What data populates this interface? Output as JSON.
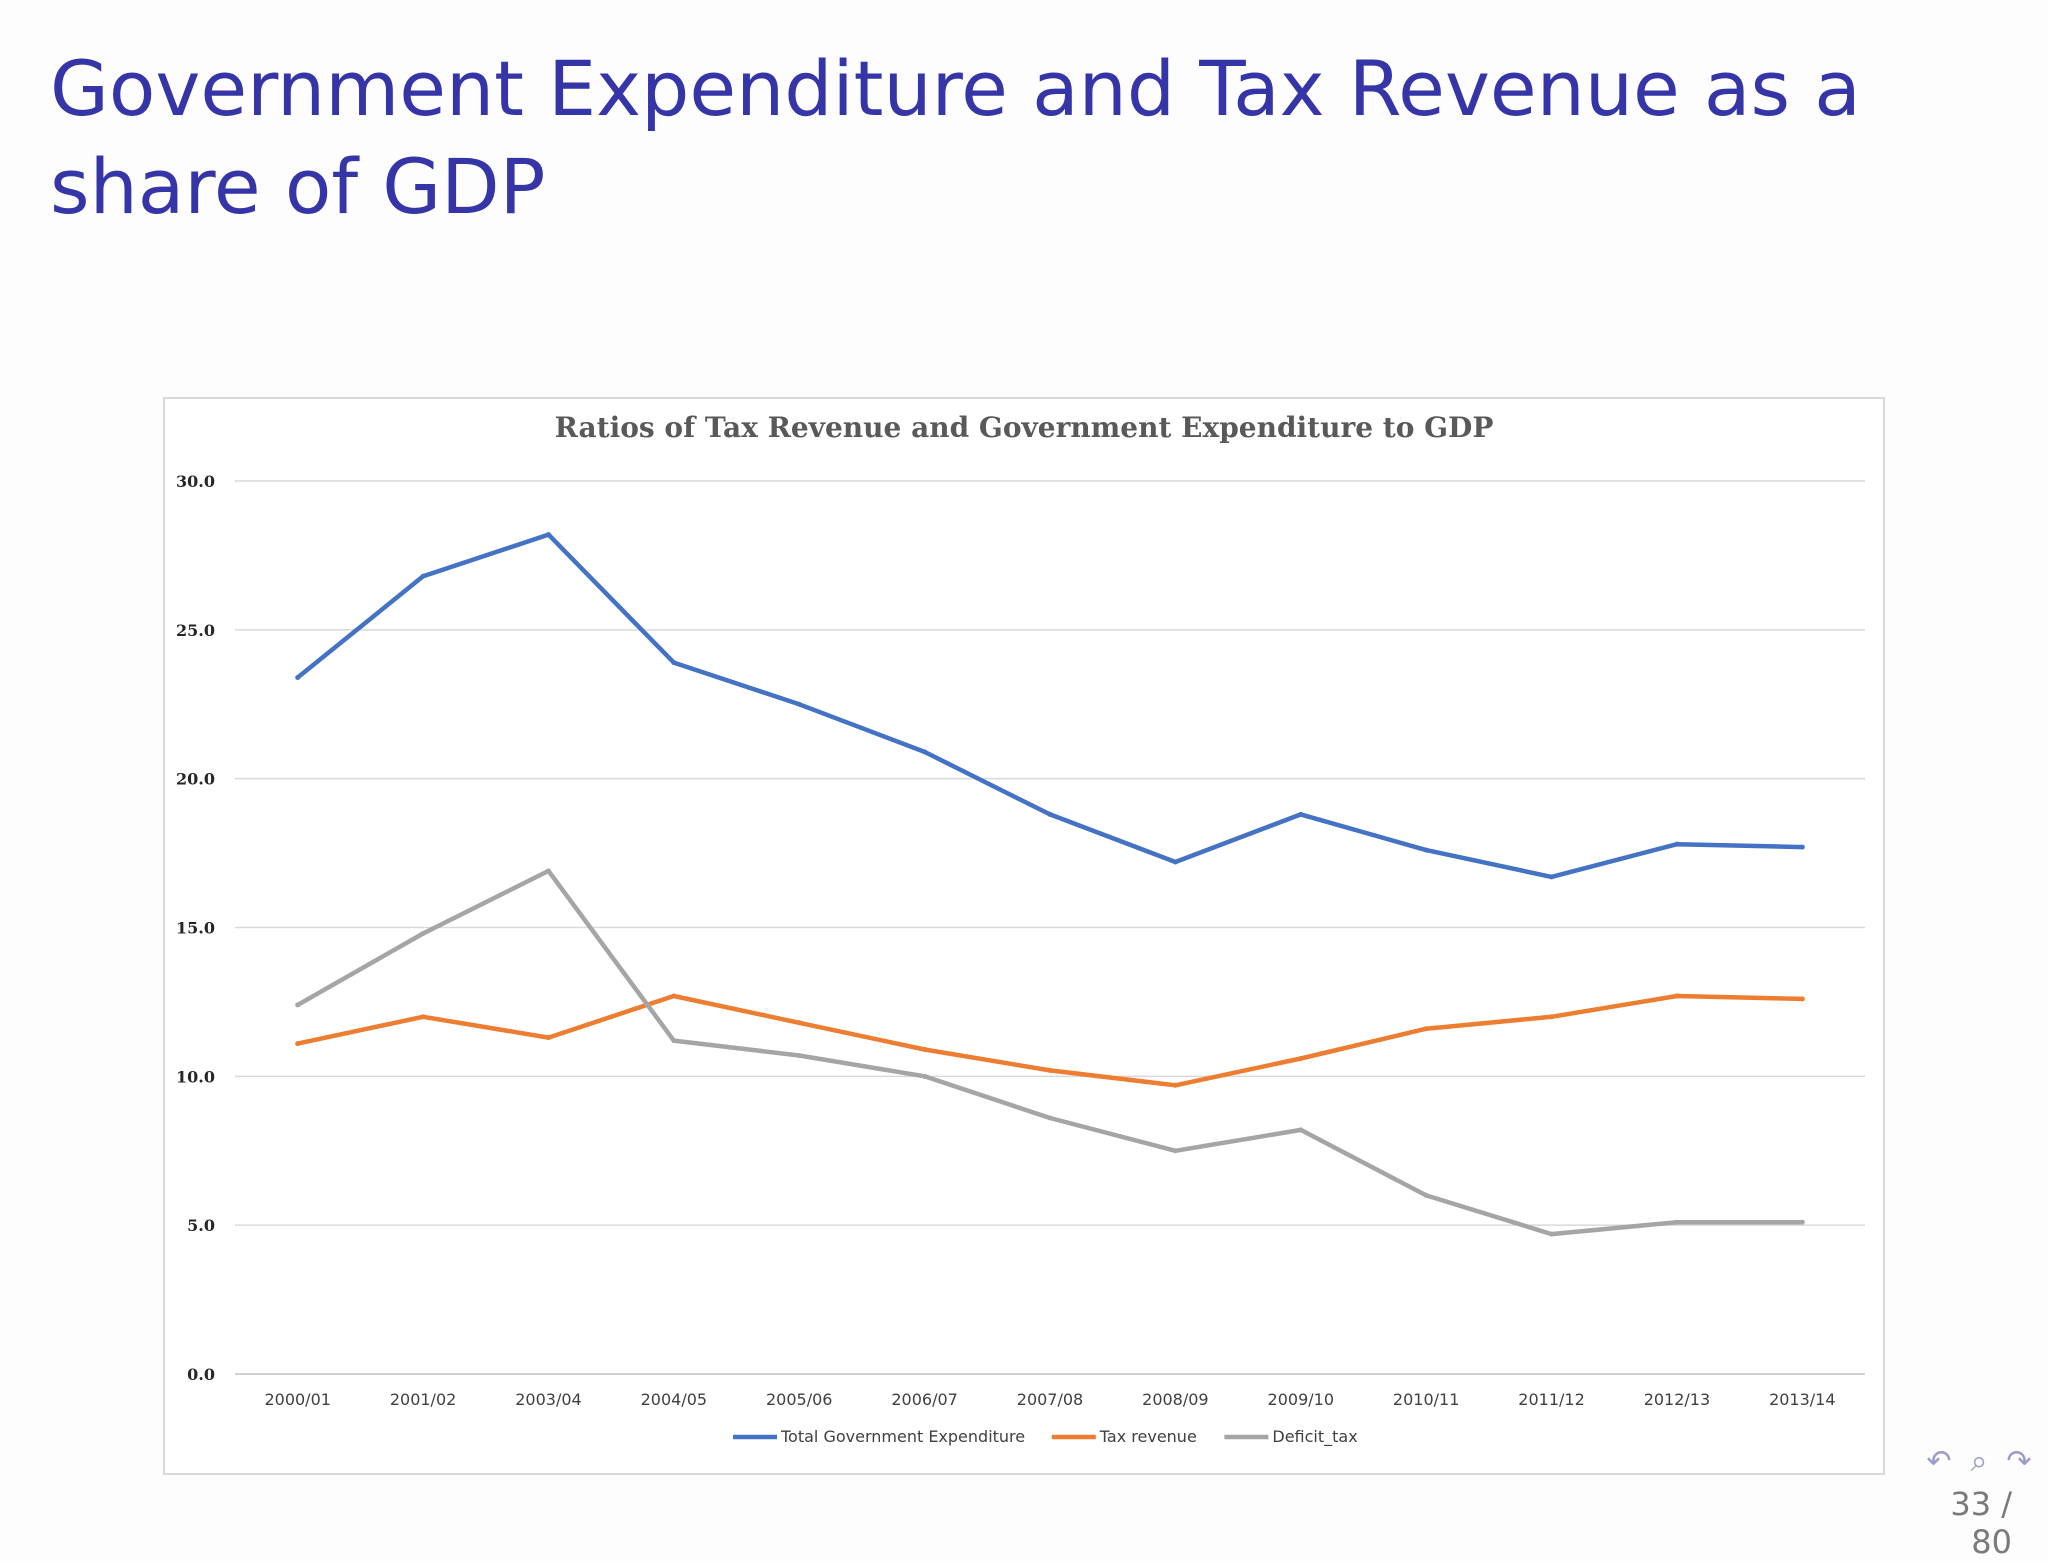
{
  "slide": {
    "title": "Government Expenditure and Tax Revenue as a share of GDP",
    "page_current": "33",
    "page_total": "80",
    "page_label": "33 / 80",
    "nav_icons": [
      "undo-icon",
      "search-icon",
      "redo-icon"
    ]
  },
  "chart_data": {
    "type": "line",
    "title": "Ratios of Tax Revenue and Government Expenditure to GDP",
    "xlabel": "",
    "ylabel": "",
    "categories": [
      "2000/01",
      "2001/02",
      "2003/04",
      "2004/05",
      "2005/06",
      "2006/07",
      "2007/08",
      "2008/09",
      "2009/10",
      "2010/11",
      "2011/12",
      "2012/13",
      "2013/14"
    ],
    "ylim": [
      0,
      30
    ],
    "yticks": [
      "0.0",
      "5.0",
      "10.0",
      "15.0",
      "20.0",
      "25.0",
      "30.0"
    ],
    "grid": true,
    "legend_position": "bottom",
    "series": [
      {
        "name": "Total Government Expenditure",
        "color": "#4472c4",
        "values": [
          23.4,
          26.8,
          28.2,
          23.9,
          22.5,
          20.9,
          18.8,
          17.2,
          18.8,
          17.6,
          16.7,
          17.8,
          17.7
        ]
      },
      {
        "name": "Tax revenue",
        "color": "#ed7d31",
        "values": [
          11.1,
          12.0,
          11.3,
          12.7,
          11.8,
          10.9,
          10.2,
          9.7,
          10.6,
          11.6,
          12.0,
          12.7,
          12.6
        ]
      },
      {
        "name": "Deficit_tax",
        "color": "#a5a5a5",
        "values": [
          12.4,
          14.8,
          16.9,
          11.2,
          10.7,
          10.0,
          8.6,
          7.5,
          8.2,
          6.0,
          4.7,
          5.1,
          5.1
        ]
      }
    ]
  }
}
